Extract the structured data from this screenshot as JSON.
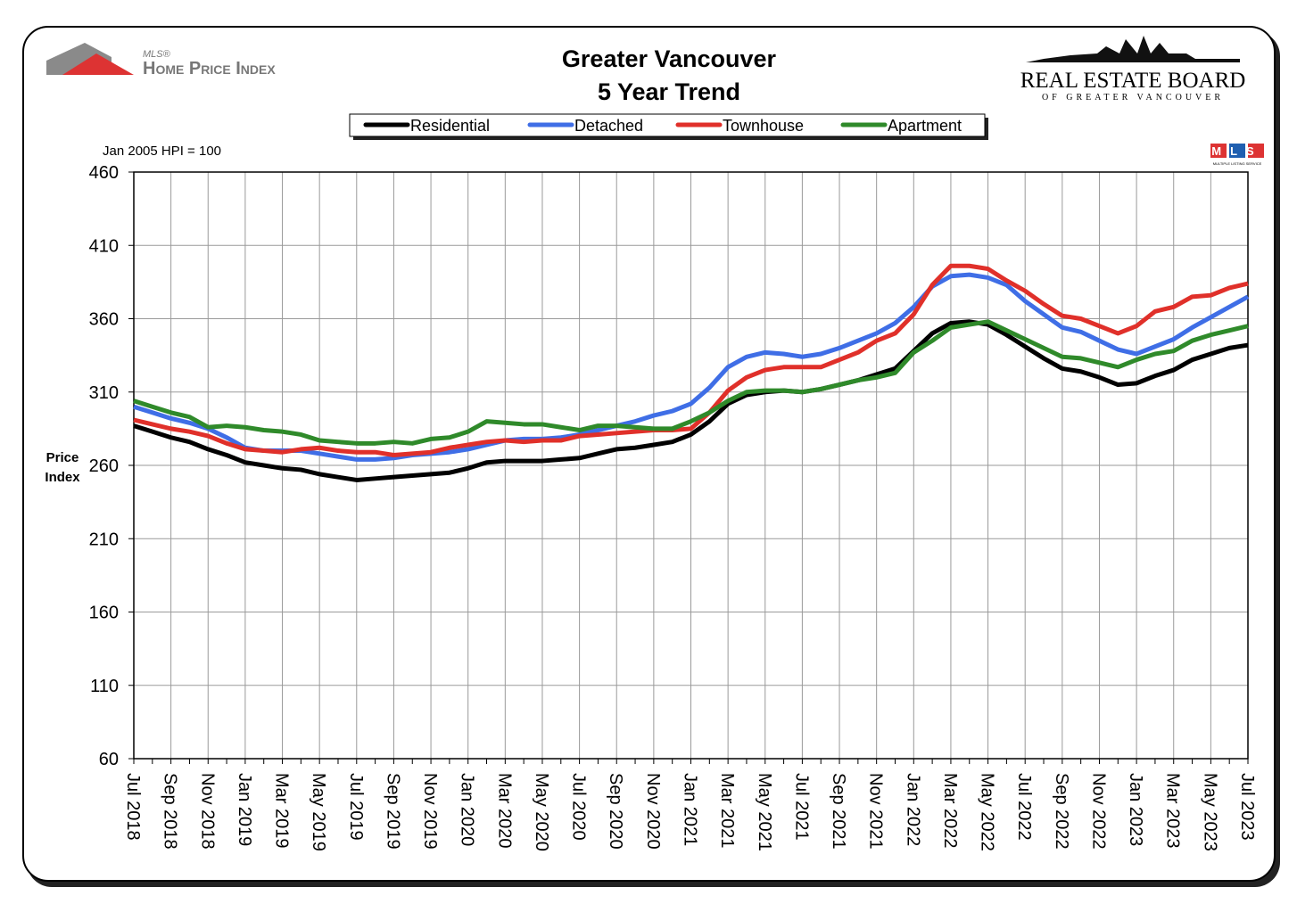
{
  "chart_data": {
    "type": "line",
    "title": "Greater Vancouver",
    "subtitle": "5 Year Trend",
    "note": "Jan 2005 HPI = 100",
    "y_label": "Price Index",
    "logo_left_small": "MLS®",
    "logo_left": "Home Price Index",
    "logo_right": "Real Estate Board",
    "logo_right_sub": "of Greater Vancouver",
    "badge": "MLS",
    "badge_sub": "MULTIPLE LISTING SERVICE",
    "categories": [
      "Jul 2018",
      null,
      "Sep 2018",
      null,
      "Nov 2018",
      null,
      "Jan 2019",
      null,
      "Mar 2019",
      null,
      "May 2019",
      null,
      "Jul 2019",
      null,
      "Sep 2019",
      null,
      "Nov 2019",
      null,
      "Jan 2020",
      null,
      "Mar 2020",
      null,
      "May 2020",
      null,
      "Jul 2020",
      null,
      "Sep 2020",
      null,
      "Nov 2020",
      null,
      "Jan 2021",
      null,
      "Mar 2021",
      null,
      "May 2021",
      null,
      "Jul 2021",
      null,
      "Sep 2021",
      null,
      "Nov 2021",
      null,
      "Jan 2022",
      null,
      "Mar 2022",
      null,
      "May 2022",
      null,
      "Jul 2022",
      null,
      "Sep 2022",
      null,
      "Nov 2022",
      null,
      "Jan 2023",
      null,
      "Mar 2023",
      null,
      "May 2023",
      null,
      "Jul 2023"
    ],
    "series": [
      {
        "name": "Residential",
        "color": "#000000",
        "values": [
          287,
          283,
          279,
          276,
          271,
          267,
          262,
          260,
          258,
          257,
          254,
          252,
          250,
          251,
          252,
          253,
          254,
          255,
          258,
          262,
          263,
          263,
          263,
          264,
          265,
          268,
          271,
          272,
          274,
          276,
          281,
          290,
          302,
          308,
          310,
          311,
          310,
          312,
          315,
          318,
          322,
          326,
          338,
          350,
          357,
          358,
          356,
          349,
          341,
          333,
          326,
          324,
          320,
          315,
          316,
          321,
          325,
          332,
          336,
          340,
          342
        ]
      },
      {
        "name": "Detached",
        "color": "#3f6ee6",
        "values": [
          300,
          296,
          292,
          289,
          285,
          279,
          272,
          270,
          270,
          270,
          268,
          266,
          264,
          264,
          265,
          267,
          268,
          269,
          271,
          274,
          277,
          278,
          278,
          279,
          281,
          284,
          287,
          290,
          294,
          297,
          302,
          313,
          327,
          334,
          337,
          336,
          334,
          336,
          340,
          345,
          350,
          357,
          368,
          382,
          389,
          390,
          388,
          383,
          372,
          363,
          354,
          351,
          345,
          339,
          336,
          341,
          346,
          354,
          361,
          368,
          375
        ]
      },
      {
        "name": "Townhouse",
        "color": "#e0302a",
        "values": [
          291,
          288,
          285,
          283,
          280,
          275,
          271,
          270,
          269,
          271,
          272,
          270,
          269,
          269,
          267,
          268,
          269,
          272,
          274,
          276,
          277,
          276,
          277,
          277,
          280,
          281,
          282,
          283,
          284,
          284,
          285,
          296,
          311,
          320,
          325,
          327,
          327,
          327,
          332,
          337,
          345,
          350,
          363,
          383,
          396,
          396,
          394,
          386,
          379,
          370,
          362,
          360,
          355,
          350,
          355,
          365,
          368,
          375,
          376,
          381,
          384
        ]
      },
      {
        "name": "Apartment",
        "color": "#2f8a2a",
        "values": [
          304,
          300,
          296,
          293,
          286,
          287,
          286,
          284,
          283,
          281,
          277,
          276,
          275,
          275,
          276,
          275,
          278,
          279,
          283,
          290,
          289,
          288,
          288,
          286,
          284,
          287,
          287,
          286,
          285,
          285,
          290,
          296,
          304,
          310,
          311,
          311,
          310,
          312,
          315,
          318,
          320,
          323,
          337,
          345,
          354,
          356,
          358,
          352,
          346,
          340,
          334,
          333,
          330,
          327,
          332,
          336,
          338,
          345,
          349,
          352,
          355
        ]
      }
    ],
    "ylim": [
      60,
      460
    ],
    "yticks": [
      60,
      110,
      160,
      210,
      260,
      310,
      360,
      410,
      460
    ],
    "grid": true
  }
}
